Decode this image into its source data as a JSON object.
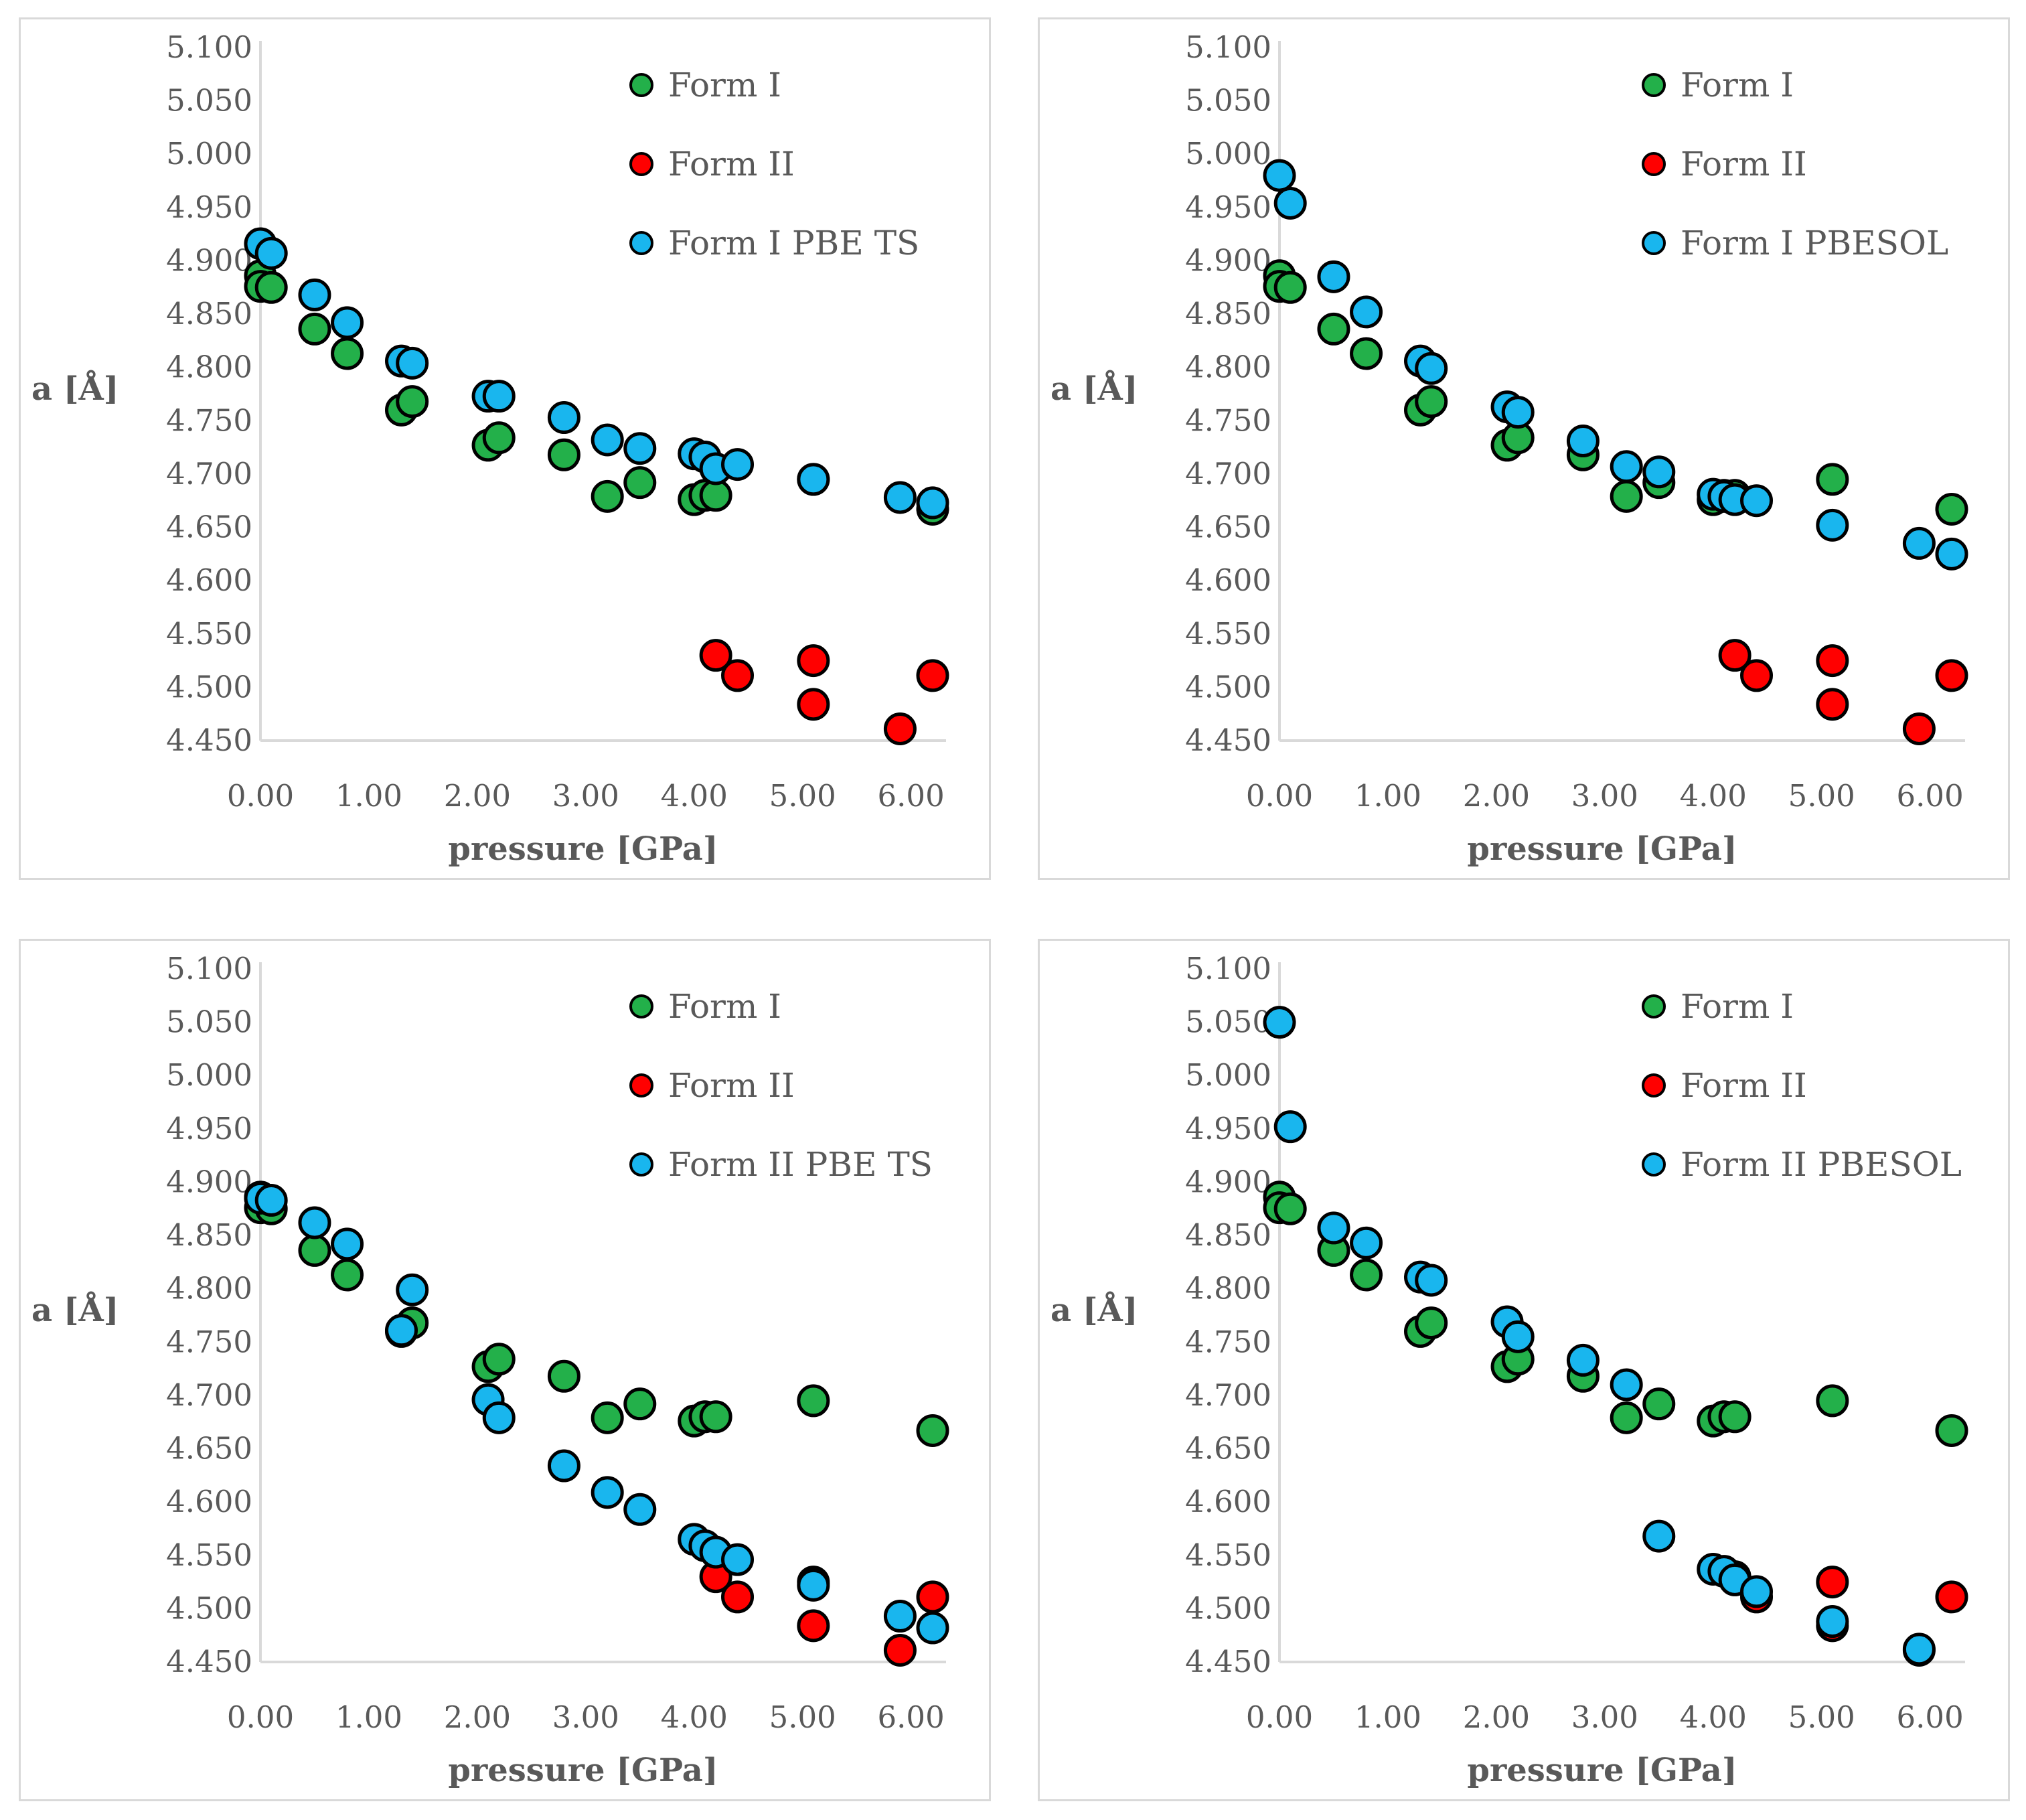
{
  "colors": {
    "form1": "#23b04a",
    "form2": "#ff0000",
    "calc": "#19b6ee",
    "axis": "#d9d9d9",
    "text": "#595959"
  },
  "chart_data": [
    {
      "type": "scatter",
      "xlabel": "pressure [GPa]",
      "ylabel": "a [Å]",
      "xlim": [
        0,
        6.2
      ],
      "ylim": [
        4.45,
        5.1
      ],
      "xticks": [
        "0.00",
        "1.00",
        "2.00",
        "3.00",
        "4.00",
        "5.00",
        "6.00"
      ],
      "yticks": [
        "4.450",
        "4.500",
        "4.550",
        "4.600",
        "4.650",
        "4.700",
        "4.750",
        "4.800",
        "4.850",
        "4.900",
        "4.950",
        "5.000",
        "5.050",
        "5.100"
      ],
      "legend": "top-right",
      "series": [
        {
          "name": "Form I",
          "color": "#23b04a",
          "points": [
            [
              0,
              4.886
            ],
            [
              0,
              4.876
            ],
            [
              0.1,
              4.875
            ],
            [
              0.5,
              4.836
            ],
            [
              0.8,
              4.813
            ],
            [
              1.3,
              4.76
            ],
            [
              1.4,
              4.768
            ],
            [
              2.1,
              4.727
            ],
            [
              2.2,
              4.734
            ],
            [
              2.8,
              4.718
            ],
            [
              3.2,
              4.679
            ],
            [
              3.5,
              4.692
            ],
            [
              4.0,
              4.676
            ],
            [
              4.1,
              4.68
            ],
            [
              4.2,
              4.68
            ],
            [
              5.1,
              4.695
            ],
            [
              6.2,
              4.667
            ]
          ]
        },
        {
          "name": "Form II",
          "color": "#ff0000",
          "points": [
            [
              4.2,
              4.53
            ],
            [
              4.4,
              4.511
            ],
            [
              5.1,
              4.525
            ],
            [
              5.1,
              4.484
            ],
            [
              5.9,
              4.461
            ],
            [
              6.2,
              4.511
            ]
          ]
        },
        {
          "name": "Form I PBE TS",
          "color": "#19b6ee",
          "points": [
            [
              0,
              4.916
            ],
            [
              0.1,
              4.907
            ],
            [
              0.5,
              4.868
            ],
            [
              0.8,
              4.842
            ],
            [
              1.3,
              4.806
            ],
            [
              1.4,
              4.804
            ],
            [
              2.1,
              4.773
            ],
            [
              2.2,
              4.773
            ],
            [
              2.8,
              4.753
            ],
            [
              3.2,
              4.732
            ],
            [
              3.5,
              4.724
            ],
            [
              4.0,
              4.719
            ],
            [
              4.1,
              4.716
            ],
            [
              4.2,
              4.705
            ],
            [
              4.4,
              4.709
            ],
            [
              5.1,
              4.695
            ],
            [
              5.9,
              4.678
            ],
            [
              6.2,
              4.673
            ]
          ]
        }
      ]
    },
    {
      "type": "scatter",
      "xlabel": "pressure [GPa]",
      "ylabel": "a [Å]",
      "xlim": [
        0,
        6.2
      ],
      "ylim": [
        4.45,
        5.1
      ],
      "xticks": [
        "0.00",
        "1.00",
        "2.00",
        "3.00",
        "4.00",
        "5.00",
        "6.00"
      ],
      "yticks": [
        "4.450",
        "4.500",
        "4.550",
        "4.600",
        "4.650",
        "4.700",
        "4.750",
        "4.800",
        "4.850",
        "4.900",
        "4.950",
        "5.000",
        "5.050",
        "5.100"
      ],
      "legend": "top-right",
      "series": [
        {
          "name": "Form I",
          "color": "#23b04a",
          "points": [
            [
              0,
              4.886
            ],
            [
              0,
              4.876
            ],
            [
              0.1,
              4.875
            ],
            [
              0.5,
              4.836
            ],
            [
              0.8,
              4.813
            ],
            [
              1.3,
              4.76
            ],
            [
              1.4,
              4.768
            ],
            [
              2.1,
              4.727
            ],
            [
              2.2,
              4.734
            ],
            [
              2.8,
              4.718
            ],
            [
              3.2,
              4.679
            ],
            [
              3.5,
              4.692
            ],
            [
              4.0,
              4.676
            ],
            [
              4.1,
              4.68
            ],
            [
              4.2,
              4.68
            ],
            [
              5.1,
              4.695
            ],
            [
              6.2,
              4.667
            ]
          ]
        },
        {
          "name": "Form II",
          "color": "#ff0000",
          "points": [
            [
              4.2,
              4.53
            ],
            [
              4.4,
              4.511
            ],
            [
              5.1,
              4.525
            ],
            [
              5.1,
              4.484
            ],
            [
              5.9,
              4.461
            ],
            [
              6.2,
              4.511
            ]
          ]
        },
        {
          "name": "Form I PBESOL",
          "color": "#19b6ee",
          "points": [
            [
              0,
              4.98
            ],
            [
              0.1,
              4.954
            ],
            [
              0.5,
              4.885
            ],
            [
              0.8,
              4.852
            ],
            [
              1.3,
              4.806
            ],
            [
              1.4,
              4.799
            ],
            [
              2.1,
              4.763
            ],
            [
              2.2,
              4.758
            ],
            [
              2.8,
              4.731
            ],
            [
              3.2,
              4.707
            ],
            [
              3.5,
              4.702
            ],
            [
              4.0,
              4.681
            ],
            [
              4.1,
              4.679
            ],
            [
              4.2,
              4.676
            ],
            [
              4.4,
              4.675
            ],
            [
              5.1,
              4.652
            ],
            [
              5.9,
              4.635
            ],
            [
              6.2,
              4.625
            ]
          ]
        }
      ]
    },
    {
      "type": "scatter",
      "xlabel": "pressure [GPa]",
      "ylabel": "a [Å]",
      "xlim": [
        0,
        6.2
      ],
      "ylim": [
        4.45,
        5.1
      ],
      "xticks": [
        "0.00",
        "1.00",
        "2.00",
        "3.00",
        "4.00",
        "5.00",
        "6.00"
      ],
      "yticks": [
        "4.450",
        "4.500",
        "4.550",
        "4.600",
        "4.650",
        "4.700",
        "4.750",
        "4.800",
        "4.850",
        "4.900",
        "4.950",
        "5.000",
        "5.050",
        "5.100"
      ],
      "legend": "top-right",
      "series": [
        {
          "name": "Form I",
          "color": "#23b04a",
          "points": [
            [
              0,
              4.886
            ],
            [
              0,
              4.876
            ],
            [
              0.1,
              4.875
            ],
            [
              0.5,
              4.836
            ],
            [
              0.8,
              4.813
            ],
            [
              1.3,
              4.76
            ],
            [
              1.4,
              4.768
            ],
            [
              2.1,
              4.727
            ],
            [
              2.2,
              4.734
            ],
            [
              2.8,
              4.718
            ],
            [
              3.2,
              4.679
            ],
            [
              3.5,
              4.692
            ],
            [
              4.0,
              4.676
            ],
            [
              4.1,
              4.68
            ],
            [
              4.2,
              4.68
            ],
            [
              5.1,
              4.695
            ],
            [
              6.2,
              4.667
            ]
          ]
        },
        {
          "name": "Form II",
          "color": "#ff0000",
          "points": [
            [
              4.2,
              4.53
            ],
            [
              4.4,
              4.511
            ],
            [
              5.1,
              4.525
            ],
            [
              5.1,
              4.484
            ],
            [
              5.9,
              4.461
            ],
            [
              6.2,
              4.511
            ]
          ]
        },
        {
          "name": "Form II PBE TS",
          "color": "#19b6ee",
          "points": [
            [
              0,
              4.885
            ],
            [
              0.1,
              4.883
            ],
            [
              0.5,
              4.862
            ],
            [
              0.8,
              4.842
            ],
            [
              1.3,
              4.761
            ],
            [
              1.4,
              4.799
            ],
            [
              2.1,
              4.696
            ],
            [
              2.2,
              4.679
            ],
            [
              2.8,
              4.634
            ],
            [
              3.2,
              4.609
            ],
            [
              3.5,
              4.593
            ],
            [
              4.0,
              4.565
            ],
            [
              4.1,
              4.559
            ],
            [
              4.2,
              4.553
            ],
            [
              4.4,
              4.546
            ],
            [
              5.1,
              4.522
            ],
            [
              5.9,
              4.493
            ],
            [
              6.2,
              4.482
            ]
          ]
        }
      ]
    },
    {
      "type": "scatter",
      "xlabel": "pressure [GPa]",
      "ylabel": "a [Å]",
      "xlim": [
        0,
        6.2
      ],
      "ylim": [
        4.45,
        5.1
      ],
      "xticks": [
        "0.00",
        "1.00",
        "2.00",
        "3.00",
        "4.00",
        "5.00",
        "6.00"
      ],
      "yticks": [
        "4.450",
        "4.500",
        "4.550",
        "4.600",
        "4.650",
        "4.700",
        "4.750",
        "4.800",
        "4.850",
        "4.900",
        "4.950",
        "5.000",
        "5.050",
        "5.100"
      ],
      "legend": "top-right",
      "series": [
        {
          "name": "Form I",
          "color": "#23b04a",
          "points": [
            [
              0,
              4.886
            ],
            [
              0,
              4.876
            ],
            [
              0.1,
              4.875
            ],
            [
              0.5,
              4.836
            ],
            [
              0.8,
              4.813
            ],
            [
              1.3,
              4.76
            ],
            [
              1.4,
              4.768
            ],
            [
              2.1,
              4.727
            ],
            [
              2.2,
              4.734
            ],
            [
              2.8,
              4.718
            ],
            [
              3.2,
              4.679
            ],
            [
              3.5,
              4.692
            ],
            [
              4.0,
              4.676
            ],
            [
              4.1,
              4.68
            ],
            [
              4.2,
              4.68
            ],
            [
              5.1,
              4.695
            ],
            [
              6.2,
              4.667
            ]
          ]
        },
        {
          "name": "Form II",
          "color": "#ff0000",
          "points": [
            [
              4.2,
              4.53
            ],
            [
              4.4,
              4.511
            ],
            [
              5.1,
              4.525
            ],
            [
              5.1,
              4.484
            ],
            [
              5.9,
              4.461
            ],
            [
              6.2,
              4.511
            ]
          ]
        },
        {
          "name": "Form II PBESOL",
          "color": "#19b6ee",
          "points": [
            [
              0,
              5.05
            ],
            [
              0.1,
              4.952
            ],
            [
              0.5,
              4.857
            ],
            [
              0.8,
              4.843
            ],
            [
              1.3,
              4.811
            ],
            [
              1.4,
              4.808
            ],
            [
              2.1,
              4.769
            ],
            [
              2.2,
              4.755
            ],
            [
              2.8,
              4.733
            ],
            [
              3.2,
              4.71
            ],
            [
              3.5,
              4.568
            ],
            [
              4.0,
              4.537
            ],
            [
              4.1,
              4.535
            ],
            [
              4.2,
              4.527
            ],
            [
              4.4,
              4.516
            ],
            [
              5.1,
              4.488
            ],
            [
              5.9,
              4.462
            ]
          ]
        }
      ]
    }
  ]
}
